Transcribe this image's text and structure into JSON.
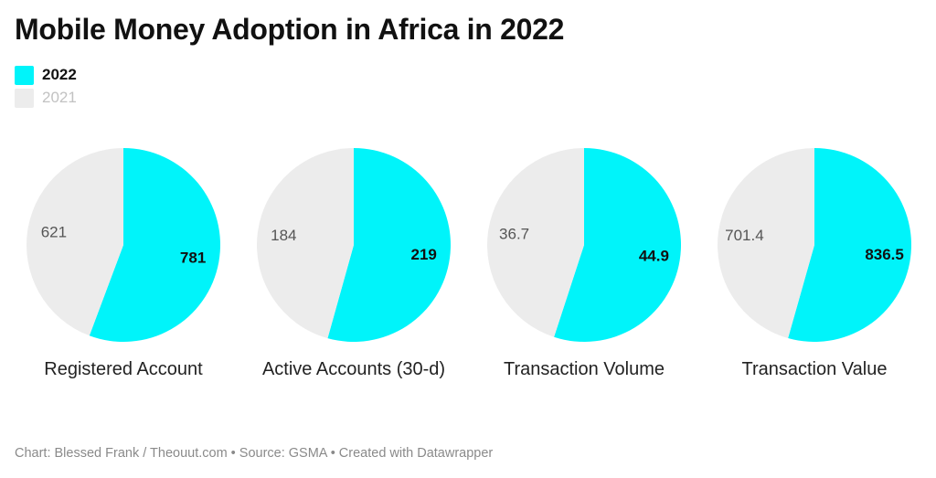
{
  "title": "Mobile Money Adoption in Africa in 2022",
  "legend": [
    {
      "label": "2022",
      "color": "#00f4fa"
    },
    {
      "label": "2021",
      "color": "#ececec"
    }
  ],
  "footer": "Chart: Blessed Frank / Theouut.com • Source: GSMA • Created with Datawrapper",
  "chart_data": {
    "type": "pie",
    "series_names": [
      "2022",
      "2021"
    ],
    "colors": {
      "2022": "#00f4fa",
      "2021": "#ececec"
    },
    "panels": [
      {
        "category": "Registered Account",
        "values": {
          "2022": 781,
          "2021": 621
        },
        "labels": {
          "2022": "781",
          "2021": "621"
        }
      },
      {
        "category": "Active Accounts (30-d)",
        "values": {
          "2022": 219,
          "2021": 184
        },
        "labels": {
          "2022": "219",
          "2021": "184"
        }
      },
      {
        "category": "Transaction Volume",
        "values": {
          "2022": 44.9,
          "2021": 36.7
        },
        "labels": {
          "2022": "44.9",
          "2021": "36.7"
        }
      },
      {
        "category": "Transaction Value",
        "values": {
          "2022": 836.5,
          "2021": 701.4
        },
        "labels": {
          "2022": "836.5",
          "2021": "701.4"
        }
      }
    ]
  }
}
